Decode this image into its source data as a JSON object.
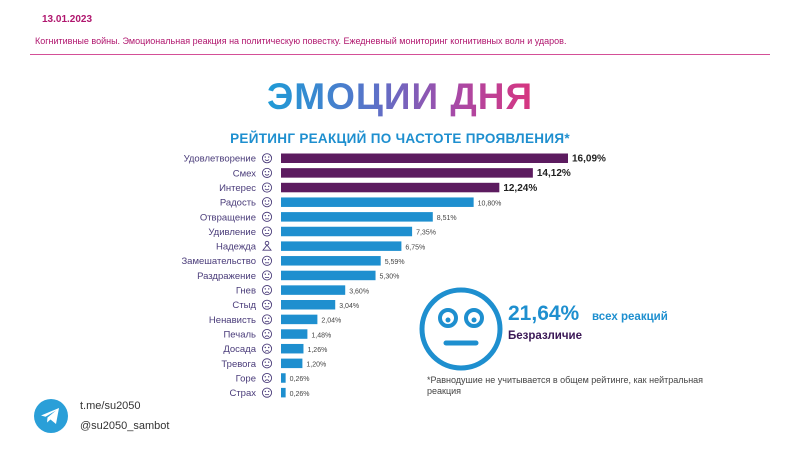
{
  "header": {
    "date": "13.01.2023",
    "subtitle": "Когнитивные войны. Эмоциональная реакция на политическую повестку. Ежедневный мониторинг когнитивных волн и ударов."
  },
  "main_title": "ЭМОЦИИ ДНЯ",
  "colors": {
    "highlight": "#5c1b5f",
    "bar": "#1e8fcf",
    "brand": "#b0166e",
    "label": "#4a3c7a"
  },
  "chart_data": {
    "type": "bar",
    "orientation": "horizontal",
    "title": "РЕЙТИНГ РЕАКЦИЙ ПО ЧАСТОТЕ ПРОЯВЛЕНИЯ*",
    "categories": [
      "Удовлетворение",
      "Смех",
      "Интерес",
      "Радость",
      "Отвращение",
      "Удивление",
      "Надежда",
      "Замешательство",
      "Раздражение",
      "Гнев",
      "Стыд",
      "Ненависть",
      "Печаль",
      "Досада",
      "Тревога",
      "Горе",
      "Страх"
    ],
    "values": [
      16.09,
      14.12,
      12.24,
      10.8,
      8.51,
      7.35,
      6.75,
      5.59,
      5.3,
      3.6,
      3.04,
      2.04,
      1.48,
      1.26,
      1.2,
      0.26,
      0.26
    ],
    "value_labels": [
      "16,09%",
      "14,12%",
      "12,24%",
      "10,80%",
      "8,51%",
      "7,35%",
      "6,75%",
      "5,59%",
      "5,30%",
      "3,60%",
      "3,04%",
      "2,04%",
      "1,48%",
      "1,26%",
      "1,20%",
      "0,26%",
      "0,26%"
    ],
    "highlighted_top": 3,
    "icons": [
      "smile-face",
      "laugh-face",
      "interest-face",
      "joy-face",
      "disgust-face",
      "surprise-face",
      "hope-figure",
      "confused-face",
      "irritated-face",
      "angry-face",
      "ashamed-face",
      "hateful-face",
      "sad-face",
      "annoyed-face",
      "anxious-face",
      "grief-face",
      "fear-face"
    ],
    "xlim": [
      0,
      16.09
    ],
    "xlabel": "",
    "ylabel": "",
    "grid": false,
    "legend": "none"
  },
  "callout": {
    "value": "21,64%",
    "suffix": "всех реакций",
    "label": "Безразличие",
    "icon": "neutral-face"
  },
  "footnote": "*Равнодушие  не учитывается в общем рейтинге, как нейтральная реакция",
  "footer": {
    "link": "t.me/su2050",
    "handle": "@su2050_sambot",
    "icon": "telegram-icon"
  }
}
